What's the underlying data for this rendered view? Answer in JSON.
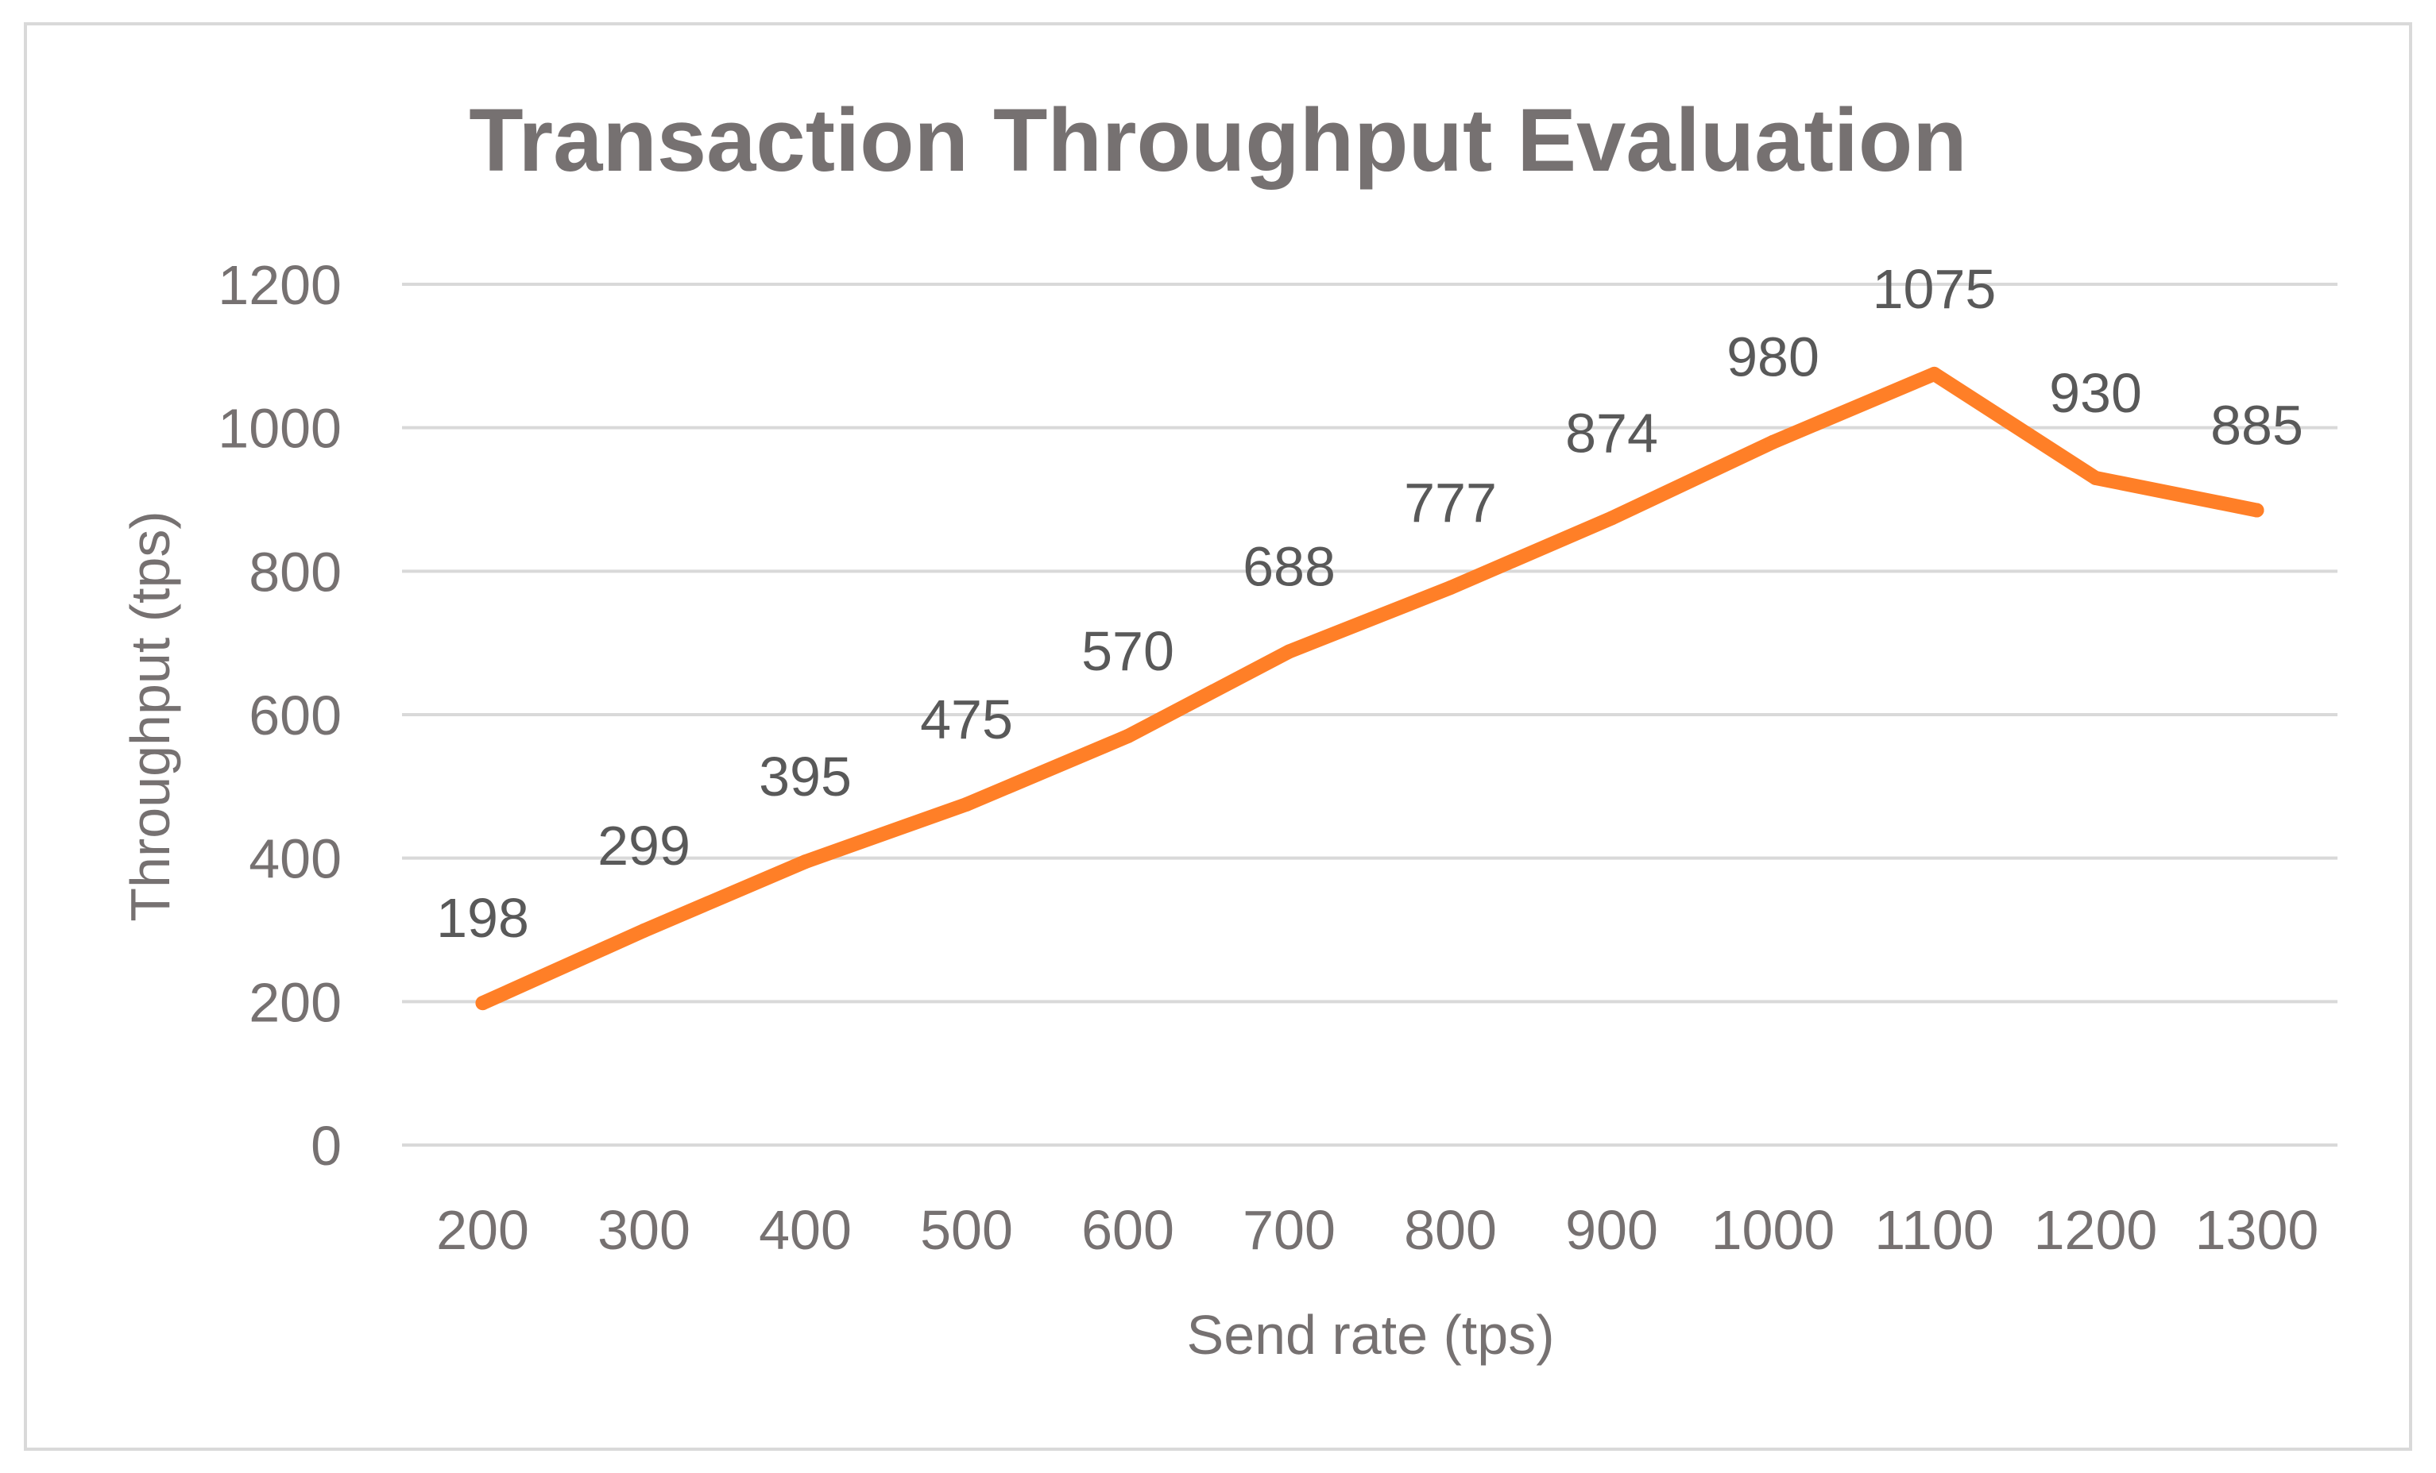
{
  "chart_data": {
    "type": "line",
    "title": "Transaction Throughput Evaluation",
    "xlabel": "Send rate (tps)",
    "ylabel": "Throughput (tps)",
    "categories": [
      "200",
      "300",
      "400",
      "500",
      "600",
      "700",
      "800",
      "900",
      "1000",
      "1100",
      "1200",
      "1300"
    ],
    "series": [
      {
        "values": [
          198,
          299,
          395,
          475,
          570,
          688,
          777,
          874,
          980,
          1075,
          930,
          885
        ],
        "color": "#ff7f27"
      }
    ],
    "ylim": [
      0,
      1200
    ],
    "yticks": [
      "0",
      "200",
      "400",
      "600",
      "800",
      "1000",
      "1200"
    ],
    "grid": true,
    "legend": "none",
    "data_labels": true
  }
}
